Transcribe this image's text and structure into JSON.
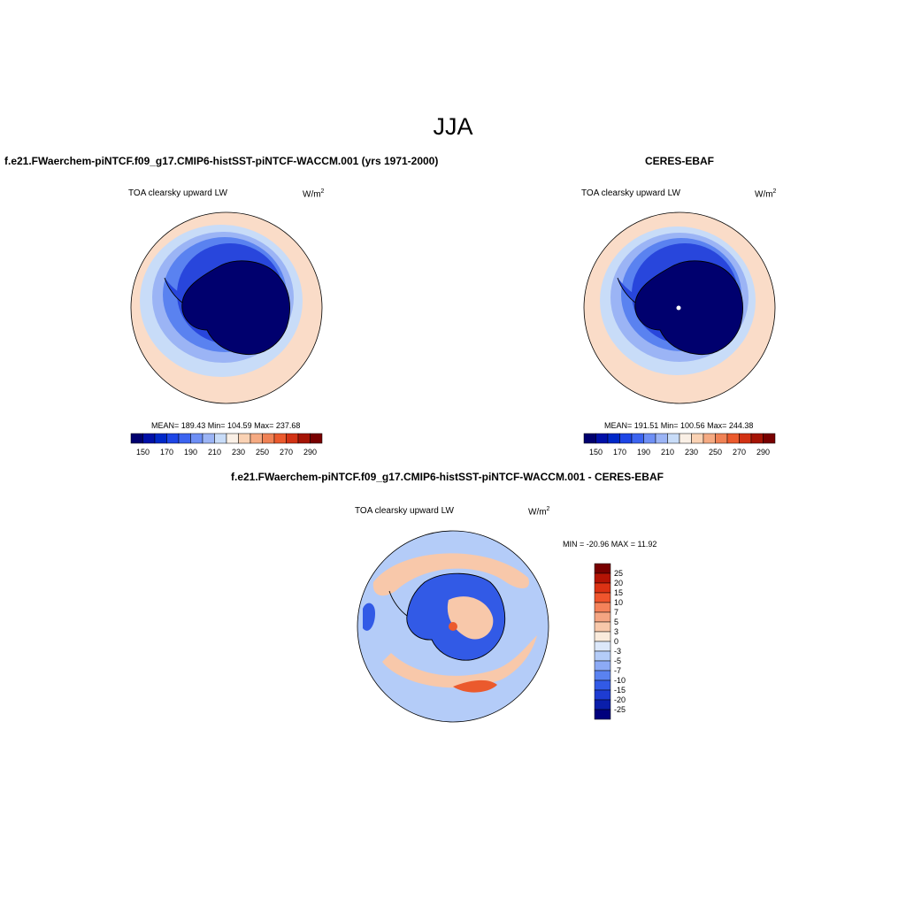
{
  "title": "JJA",
  "panels": [
    {
      "case": "f.e21.FWaerchem-piNTCF.f09_g17.CMIP6-histSST-piNTCF-WACCM.001 (yrs 1971-2000)",
      "left_label": "TOA clearsky upward LW",
      "units": "W/m",
      "units_sup": "2",
      "stats": "MEAN= 189.43  Min= 104.59  Max= 237.68"
    },
    {
      "case": "CERES-EBAF",
      "left_label": "TOA clearsky upward LW",
      "units": "W/m",
      "units_sup": "2",
      "stats": "MEAN= 191.51  Min= 100.56  Max= 244.38"
    }
  ],
  "diff_panel": {
    "title": "f.e21.FWaerchem-piNTCF.f09_g17.CMIP6-histSST-piNTCF-WACCM.001 - CERES-EBAF",
    "left_label": "TOA clearsky upward LW",
    "units": "W/m",
    "units_sup": "2",
    "minmax": "MIN = -20.96 MAX =  11.92"
  },
  "colorbar_main": {
    "colors": [
      "#00006e",
      "#0010a8",
      "#0028c8",
      "#1e46e6",
      "#3c64f0",
      "#6e8ff5",
      "#9bb4f5",
      "#c8dcf8",
      "#faf0e6",
      "#fad2b4",
      "#f5aa82",
      "#f08255",
      "#eb5a2d",
      "#d23214",
      "#a51405",
      "#780000"
    ],
    "tick_labels": [
      "150",
      "170",
      "190",
      "210",
      "230",
      "250",
      "270",
      "290"
    ]
  },
  "colorbar_diff": {
    "colors": [
      "#780000",
      "#b41405",
      "#dc3214",
      "#f0552d",
      "#f5825a",
      "#f5a582",
      "#f8c8aa",
      "#faebdc",
      "#dce8fa",
      "#b4ccf8",
      "#8caaf5",
      "#5a82f0",
      "#325ae6",
      "#1e3cd2",
      "#0a1eaa",
      "#00007d"
    ],
    "tick_labels": [
      "25",
      "20",
      "15",
      "10",
      "7",
      "5",
      "3",
      "0",
      "-3",
      "-5",
      "-7",
      "-10",
      "-15",
      "-20",
      "-25"
    ]
  },
  "map_colors": {
    "ring_outer": "#fadcc8",
    "ring_light": "#c8dcf8",
    "ring_mid": "#9bb4f5",
    "ring_blue": "#5a82f0",
    "ring_deep": "#2846dc",
    "core": "#00006e",
    "diff_base": "#b4ccf8",
    "diff_pos": "#f8c8aa",
    "diff_strong_pos": "#eb5a2d",
    "diff_neg": "#325ae6"
  }
}
